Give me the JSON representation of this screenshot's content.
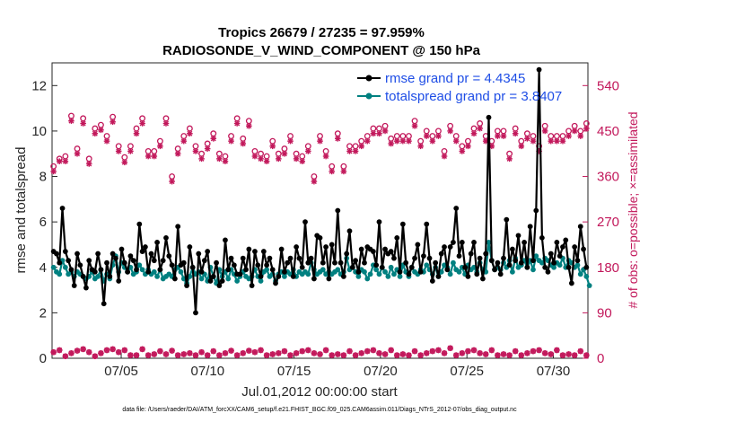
{
  "chart_data": {
    "type": "line",
    "title_line1": "Tropics 26679 / 27235 = 97.959%",
    "title_line2": "RADIOSONDE_V_WIND_COMPONENT @ 150 hPa",
    "xlabel": "Jul.01,2012 00:00:00 start",
    "ylabel_left": "rmse and totalspread",
    "ylabel_right": "# of obs: o=possible; ×=assimilated",
    "footnote": "data file: /Users/raeder/DAI/ATM_forcXX/CAM6_setup/f.e21.FHIST_BGC.f09_025.CAM6assim.011/Diags_NTrS_2012-07/obs_diag_output.nc",
    "x_ticks": [
      {
        "day": 5,
        "label": "07/05"
      },
      {
        "day": 10,
        "label": "07/10"
      },
      {
        "day": 15,
        "label": "07/15"
      },
      {
        "day": 20,
        "label": "07/20"
      },
      {
        "day": 25,
        "label": "07/25"
      },
      {
        "day": 30,
        "label": "07/30"
      }
    ],
    "xlim": [
      1,
      32
    ],
    "ylim_left": [
      0,
      13
    ],
    "ylim_right": [
      0,
      585
    ],
    "y_ticks_left": [
      "0",
      "2",
      "4",
      "6",
      "8",
      "10",
      "12"
    ],
    "y_ticks_right": [
      "0",
      "90",
      "180",
      "270",
      "360",
      "450",
      "540"
    ],
    "legend": [
      {
        "label": "rmse grand pr = 4.4345",
        "color": "#000000"
      },
      {
        "label": "totalspread grand pr = 3.8407",
        "color": "#008080"
      }
    ],
    "colors": {
      "rmse": "#000000",
      "spread": "#008080",
      "obs": "#c2185b",
      "axis": "#262626",
      "legend_text": "#1f4ee6"
    },
    "series": [
      {
        "name": "rmse",
        "values": [
          4.7,
          4.6,
          4.2,
          6.6,
          4.7,
          4.3,
          3.9,
          3.2,
          4.6,
          4.1,
          3.6,
          3.1,
          4.3,
          3.9,
          3.8,
          4.6,
          3.9,
          2.4,
          4.2,
          3.6,
          4.6,
          4.4,
          3.4,
          4.8,
          4.2,
          3.8,
          4.5,
          4.3,
          3.9,
          5.9,
          4.7,
          4.9,
          3.8,
          4.6,
          4.3,
          5.1,
          3.9,
          4.3,
          5.3,
          4.5,
          4.1,
          3.5,
          5.8,
          4.1,
          4.2,
          3.2,
          4.9,
          4.0,
          2.0,
          4.6,
          3.8,
          4.3,
          4.7,
          3.4,
          3.6,
          4.2,
          3.2,
          3.4,
          5.2,
          3.9,
          4.4,
          4.1,
          3.7,
          3.7,
          4.4,
          3.9,
          4.8,
          3.2,
          4.7,
          4.1,
          3.6,
          4.7,
          4.1,
          4.4,
          3.9,
          3.3,
          3.6,
          4.8,
          3.8,
          4.2,
          4.4,
          3.6,
          4.9,
          4.4,
          4.0,
          6.0,
          4.2,
          4.4,
          3.5,
          5.4,
          5.3,
          4.2,
          4.9,
          3.5,
          5.0,
          4.2,
          6.5,
          4.2,
          3.6,
          4.6,
          5.6,
          4.0,
          4.3,
          3.8,
          4.8,
          4.2,
          4.9,
          4.8,
          4.7,
          4.1,
          6.0,
          4.0,
          4.8,
          4.6,
          4.7,
          4.4,
          5.3,
          3.8,
          5.9,
          4.2,
          3.7,
          4.0,
          4.4,
          5.0,
          3.8,
          4.5,
          5.9,
          4.4,
          3.4,
          4.2,
          3.6,
          4.6,
          4.9,
          3.9,
          4.9,
          5.1,
          6.6,
          4.5,
          5.1,
          4.0,
          3.6,
          4.6,
          5.1,
          3.7,
          4.4,
          3.5,
          4.6,
          10.6,
          4.3,
          3.9,
          4.2,
          3.7,
          4.4,
          6.1,
          4.1,
          4.8,
          4.3,
          5.4,
          4.2,
          5.1,
          4.0,
          5.8,
          4.3,
          6.5,
          12.7,
          5.3,
          4.0,
          3.8,
          4.6,
          4.2,
          5.1,
          4.5,
          4.9,
          5.2,
          4.0,
          3.3,
          4.9,
          4.3,
          5.8,
          4.8,
          4.0
        ]
      },
      {
        "name": "totalspread",
        "values": [
          4.0,
          3.8,
          3.7,
          4.3,
          4.0,
          3.7,
          3.8,
          3.6,
          3.8,
          3.7,
          3.6,
          3.5,
          3.6,
          3.8,
          3.5,
          3.6,
          3.9,
          3.4,
          3.7,
          3.5,
          4.1,
          4.5,
          3.8,
          4.2,
          4.0,
          3.8,
          4.0,
          3.7,
          3.8,
          4.1,
          3.9,
          3.7,
          3.9,
          3.7,
          3.8,
          3.6,
          3.9,
          3.5,
          3.6,
          3.7,
          3.6,
          3.9,
          4.0,
          3.8,
          3.5,
          3.3,
          3.6,
          4.0,
          3.7,
          3.8,
          3.5,
          3.7,
          3.4,
          4.0,
          3.6,
          3.3,
          3.9,
          3.6,
          3.8,
          3.5,
          3.9,
          3.7,
          3.4,
          3.6,
          3.8,
          3.6,
          3.5,
          3.6,
          3.9,
          3.6,
          3.4,
          3.8,
          3.9,
          3.6,
          3.7,
          3.4,
          3.7,
          3.8,
          3.6,
          3.8,
          3.7,
          3.9,
          3.6,
          3.8,
          3.7,
          3.8,
          3.7,
          4.2,
          3.9,
          3.7,
          3.8,
          3.9,
          3.7,
          3.8,
          3.7,
          3.8,
          3.9,
          3.7,
          3.8,
          4.4,
          3.9,
          4.0,
          3.8,
          3.6,
          3.9,
          3.8,
          3.5,
          3.7,
          4.1,
          3.9,
          3.7,
          4.0,
          3.8,
          3.6,
          4.0,
          3.7,
          3.9,
          3.6,
          4.1,
          3.8,
          3.6,
          4.0,
          3.8,
          3.7,
          3.9,
          3.8,
          4.1,
          3.9,
          3.7,
          4.0,
          3.6,
          3.8,
          4.1,
          4.0,
          3.7,
          4.2,
          3.9,
          3.8,
          4.0,
          3.7,
          4.1,
          3.9,
          4.0,
          3.8,
          4.2,
          3.9,
          3.8,
          5.1,
          4.3,
          3.9,
          4.0,
          3.9,
          4.2,
          4.0,
          4.3,
          3.8,
          4.4,
          4.0,
          4.1,
          4.3,
          4.0,
          4.3,
          3.9,
          4.5,
          4.3,
          4.2,
          4.4,
          4.3,
          4.1,
          4.0,
          4.2,
          4.1,
          4.4,
          4.0,
          4.3,
          4.2,
          4.0,
          4.1,
          3.7,
          3.9,
          3.6,
          3.2
        ]
      },
      {
        "name": "obs_possible",
        "values": [
          380,
          410,
          395,
          435,
          400,
          455,
          480,
          470,
          415,
          420,
          475,
          450,
          395,
          490,
          455,
          455,
          462,
          445,
          440,
          448,
          478,
          430,
          420,
          410,
          398,
          400,
          420,
          420,
          455,
          460,
          475,
          460,
          410,
          415,
          410,
          440,
          430,
          460,
          475,
          380,
          360,
          435,
          415,
          405,
          440,
          460,
          455,
          405,
          420,
          430,
          405,
          410,
          425,
          420,
          445,
          400,
          405,
          400,
          400,
          395,
          440,
          460,
          475,
          455,
          435,
          440,
          470,
          470,
          410,
          395,
          405,
          420,
          400,
          420,
          430,
          425,
          405,
          410,
          415,
          420,
          440,
          430,
          405,
          420,
          400,
          418,
          420,
          400,
          360,
          395,
          440,
          430,
          410,
          390,
          380,
          420,
          445,
          430,
          380,
          420,
          420,
          430,
          420,
          415,
          430,
          440,
          440,
          430,
          455,
          450,
          455,
          435,
          460,
          460,
          435,
          430,
          440,
          440,
          440,
          445,
          440,
          455,
          470,
          445,
          430,
          430,
          450,
          450,
          440,
          440,
          450,
          430,
          410,
          440,
          460,
          460,
          440,
          440,
          420,
          430,
          430,
          445,
          455,
          475,
          465,
          460,
          440,
          450,
          430,
          450,
          450,
          425,
          450,
          450,
          405,
          420,
          455,
          440,
          430,
          440,
          445,
          455,
          440,
          460,
          420,
          440,
          460,
          455,
          440,
          440,
          440,
          420,
          440,
          450,
          450,
          425,
          460,
          480,
          450,
          455,
          465,
          450
        ]
      },
      {
        "name": "obs_assimilated",
        "values": [
          370,
          400,
          390,
          425,
          390,
          445,
          470,
          460,
          405,
          410,
          465,
          440,
          385,
          480,
          445,
          445,
          452,
          435,
          430,
          438,
          468,
          420,
          410,
          400,
          388,
          390,
          410,
          410,
          445,
          450,
          465,
          450,
          400,
          405,
          400,
          430,
          420,
          450,
          465,
          370,
          350,
          425,
          405,
          395,
          430,
          450,
          445,
          395,
          410,
          420,
          395,
          400,
          415,
          410,
          435,
          390,
          395,
          390,
          390,
          385,
          430,
          450,
          465,
          445,
          425,
          430,
          460,
          460,
          400,
          385,
          395,
          410,
          390,
          410,
          420,
          415,
          395,
          400,
          405,
          410,
          430,
          420,
          395,
          410,
          390,
          408,
          410,
          390,
          350,
          385,
          430,
          420,
          400,
          380,
          370,
          410,
          435,
          420,
          370,
          410,
          410,
          420,
          410,
          405,
          420,
          430,
          430,
          420,
          445,
          440,
          445,
          425,
          450,
          450,
          425,
          420,
          430,
          430,
          430,
          435,
          430,
          445,
          460,
          435,
          420,
          420,
          440,
          440,
          430,
          430,
          440,
          420,
          400,
          430,
          450,
          450,
          430,
          430,
          410,
          420,
          420,
          435,
          445,
          465,
          455,
          450,
          430,
          440,
          420,
          440,
          440,
          415,
          440,
          440,
          395,
          410,
          445,
          430,
          420,
          430,
          435,
          445,
          430,
          450,
          410,
          430,
          450,
          445,
          430,
          430,
          430,
          410,
          430,
          440,
          440,
          415,
          450,
          470,
          440,
          445,
          455,
          440
        ]
      },
      {
        "name": "obs_low",
        "values": [
          12,
          6,
          16,
          8,
          4,
          20,
          10,
          6,
          15,
          8,
          18,
          6,
          12,
          10,
          4,
          18,
          10,
          6,
          16,
          12,
          18,
          8,
          12,
          6,
          16,
          10,
          6,
          14,
          6,
          8,
          18,
          10,
          6,
          15,
          8,
          6,
          14,
          18,
          8,
          6,
          15,
          10,
          6,
          16,
          8,
          16,
          10,
          18,
          6,
          8,
          12,
          16,
          6,
          10,
          14,
          8,
          6,
          16,
          10,
          6,
          15,
          8,
          6,
          16,
          10,
          6,
          15,
          8,
          12,
          6,
          16,
          10,
          6,
          14,
          8,
          16,
          10,
          6,
          14,
          8,
          6,
          16,
          10,
          6,
          14,
          8,
          16,
          6,
          10,
          14,
          8,
          6,
          16,
          10,
          6,
          14,
          8,
          16,
          6,
          10,
          14,
          8,
          6,
          16,
          10,
          6,
          14,
          8,
          16,
          6,
          10,
          14,
          8,
          6,
          16,
          10,
          6,
          14,
          8,
          16,
          6,
          10,
          14,
          8,
          6,
          16,
          10,
          6,
          14,
          8,
          16,
          6,
          10,
          14,
          20,
          8,
          6,
          16,
          10,
          6,
          14,
          8,
          16,
          6,
          10,
          14,
          8,
          6,
          16,
          10,
          6,
          14,
          8,
          16,
          6,
          10,
          14,
          8,
          6,
          16,
          10,
          6,
          14,
          8,
          16,
          6,
          10,
          14,
          8,
          6,
          16,
          10,
          6,
          14,
          8,
          16,
          6,
          10,
          14,
          8,
          6,
          16
        ]
      }
    ]
  }
}
